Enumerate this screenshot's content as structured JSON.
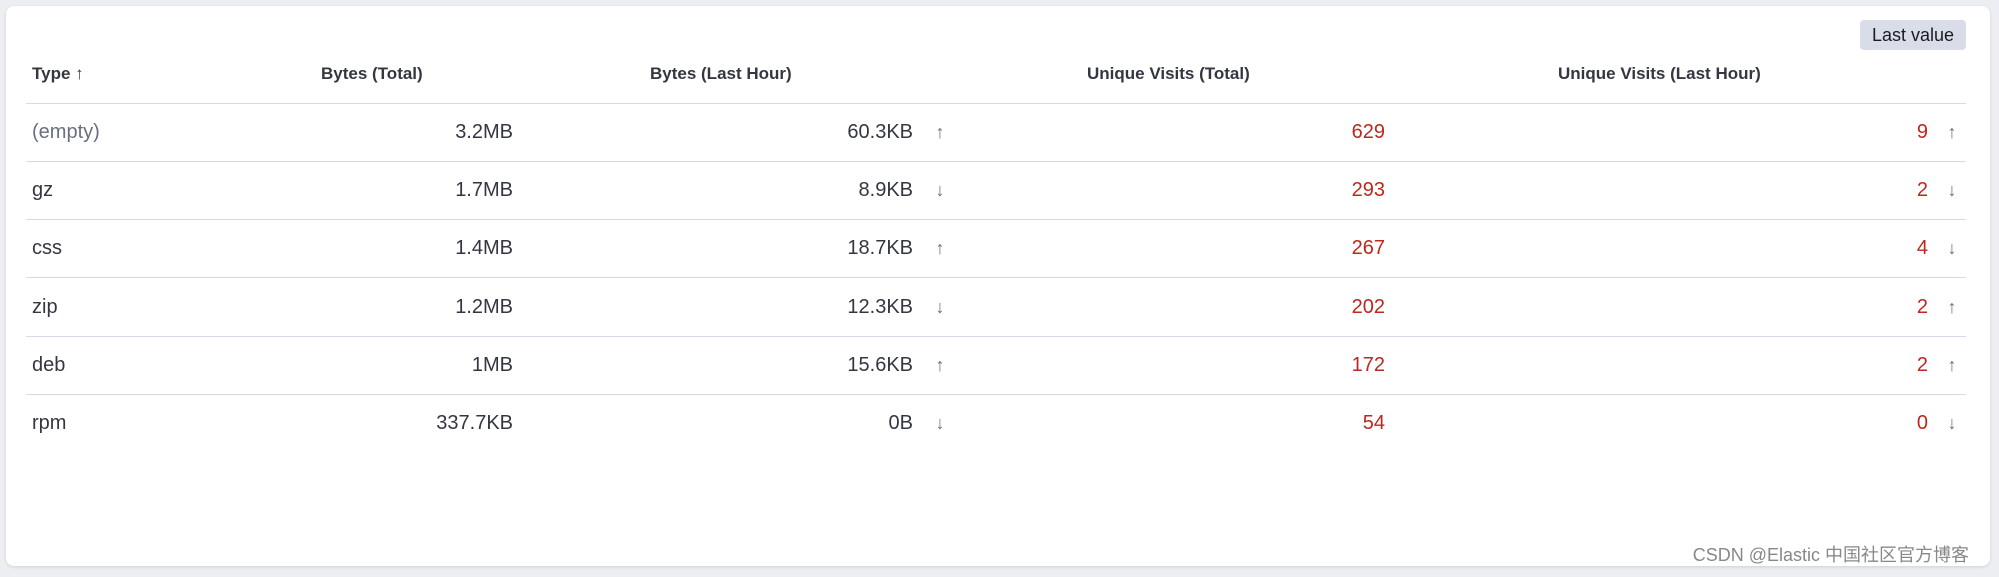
{
  "toolbar": {
    "badge_label": "Last value"
  },
  "table": {
    "headers": [
      "Type",
      "Bytes (Total)",
      "Bytes (Last Hour)",
      "Unique Visits (Total)",
      "Unique Visits (Last Hour)"
    ],
    "sort": {
      "column": "Type",
      "direction": "ascending",
      "icon": "arrow-up-icon"
    },
    "rows": [
      {
        "type": "(empty)",
        "bytes_total": "3.2MB",
        "bytes_last_hour": "60.3KB",
        "bytes_trend": "up",
        "visits_total": "629",
        "visits_last_hour": "9",
        "visits_trend": "up"
      },
      {
        "type": "gz",
        "bytes_total": "1.7MB",
        "bytes_last_hour": "8.9KB",
        "bytes_trend": "down",
        "visits_total": "293",
        "visits_last_hour": "2",
        "visits_trend": "down"
      },
      {
        "type": "css",
        "bytes_total": "1.4MB",
        "bytes_last_hour": "18.7KB",
        "bytes_trend": "up",
        "visits_total": "267",
        "visits_last_hour": "4",
        "visits_trend": "down"
      },
      {
        "type": "zip",
        "bytes_total": "1.2MB",
        "bytes_last_hour": "12.3KB",
        "bytes_trend": "down",
        "visits_total": "202",
        "visits_last_hour": "2",
        "visits_trend": "up"
      },
      {
        "type": "deb",
        "bytes_total": "1MB",
        "bytes_last_hour": "15.6KB",
        "bytes_trend": "up",
        "visits_total": "172",
        "visits_last_hour": "2",
        "visits_trend": "up"
      },
      {
        "type": "rpm",
        "bytes_total": "337.7KB",
        "bytes_last_hour": "0B",
        "bytes_trend": "down",
        "visits_total": "54",
        "visits_last_hour": "0",
        "visits_trend": "down"
      }
    ]
  },
  "colors": {
    "visits_text": "#bd271e",
    "badge_bg": "#d9dde8"
  },
  "watermark": "CSDN @Elastic 中国社区官方博客"
}
